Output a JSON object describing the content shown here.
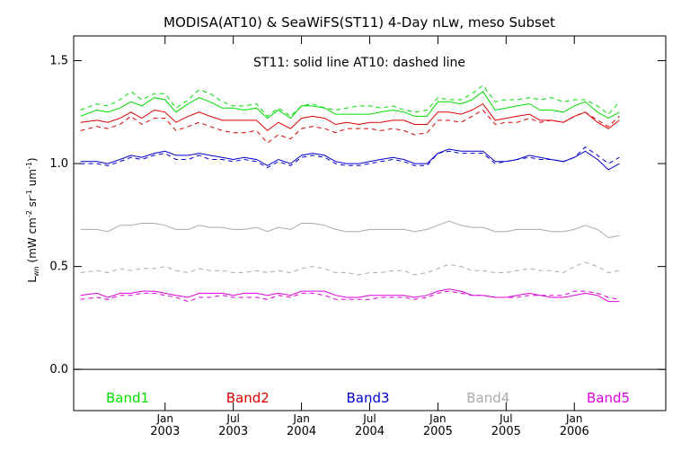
{
  "chart_data": {
    "type": "line",
    "title": "MODISA(AT10) & SeaWiFS(ST11) 4-Day nLw, meso Subset",
    "subtitle": "ST11: solid line   AT10: dashed line",
    "ylabel": "L_wn (mW cm^-2 sr^-1 um^-1)",
    "ylabel_parts": {
      "main": "L",
      "sub": "wn",
      "open": " (mW cm",
      "exp1": "-2",
      "mid1": " sr",
      "exp2": "-1",
      "mid2": " um",
      "exp3": "-1",
      "close": ")"
    },
    "xlabel": "",
    "xlim": [
      2002.33,
      2006.67
    ],
    "ylim": [
      -0.2,
      1.62
    ],
    "grid": false,
    "x_ticks": [
      {
        "x": 2003.0,
        "month": "Jan",
        "year": "2003"
      },
      {
        "x": 2003.5,
        "month": "Jul",
        "year": "2003"
      },
      {
        "x": 2004.0,
        "month": "Jan",
        "year": "2004"
      },
      {
        "x": 2004.5,
        "month": "Jul",
        "year": "2004"
      },
      {
        "x": 2005.0,
        "month": "Jan",
        "year": "2005"
      },
      {
        "x": 2005.5,
        "month": "Jul",
        "year": "2005"
      },
      {
        "x": 2006.0,
        "month": "Jan",
        "year": "2006"
      }
    ],
    "y_ticks": [
      {
        "value": 0.0,
        "label": "0.0"
      },
      {
        "value": 0.5,
        "label": "0.5"
      },
      {
        "value": 1.0,
        "label": "1.0"
      },
      {
        "value": 1.5,
        "label": "1.5"
      }
    ],
    "reference_line_y": 0.0,
    "legend_placement": "bottom-inside",
    "colors": {
      "band1": "#00dd00",
      "band2": "#dd0000",
      "band3": "#0000cc",
      "band4": "#aaaaaa",
      "band5": "#dd00dd"
    },
    "x": [
      2002.38,
      2002.5,
      2002.58,
      2002.67,
      2002.75,
      2002.83,
      2002.92,
      2003.0,
      2003.08,
      2003.17,
      2003.25,
      2003.33,
      2003.42,
      2003.5,
      2003.58,
      2003.67,
      2003.75,
      2003.83,
      2003.92,
      2004.0,
      2004.08,
      2004.17,
      2004.25,
      2004.33,
      2004.42,
      2004.5,
      2004.58,
      2004.67,
      2004.75,
      2004.83,
      2004.92,
      2005.0,
      2005.08,
      2005.17,
      2005.25,
      2005.33,
      2005.42,
      2005.5,
      2005.58,
      2005.67,
      2005.75,
      2005.83,
      2005.92,
      2006.0,
      2006.08,
      2006.17,
      2006.25,
      2006.33
    ],
    "series": [
      {
        "name": "Band1",
        "style": "solid",
        "color_key": "band1",
        "values": [
          1.23,
          1.26,
          1.25,
          1.27,
          1.3,
          1.28,
          1.32,
          1.31,
          1.25,
          1.29,
          1.32,
          1.3,
          1.27,
          1.27,
          1.26,
          1.27,
          1.22,
          1.26,
          1.22,
          1.28,
          1.28,
          1.27,
          1.24,
          1.24,
          1.24,
          1.24,
          1.25,
          1.26,
          1.25,
          1.23,
          1.23,
          1.3,
          1.3,
          1.29,
          1.31,
          1.35,
          1.26,
          1.27,
          1.28,
          1.29,
          1.26,
          1.26,
          1.25,
          1.28,
          1.3,
          1.25,
          1.22,
          1.25
        ]
      },
      {
        "name": "Band1",
        "style": "dashed",
        "color_key": "band1",
        "values": [
          1.26,
          1.29,
          1.28,
          1.31,
          1.35,
          1.31,
          1.34,
          1.34,
          1.27,
          1.31,
          1.36,
          1.34,
          1.3,
          1.28,
          1.28,
          1.29,
          1.23,
          1.27,
          1.23,
          1.28,
          1.29,
          1.27,
          1.26,
          1.27,
          1.28,
          1.28,
          1.27,
          1.28,
          1.26,
          1.25,
          1.26,
          1.32,
          1.31,
          1.31,
          1.34,
          1.38,
          1.3,
          1.31,
          1.31,
          1.32,
          1.31,
          1.32,
          1.3,
          1.31,
          1.31,
          1.28,
          1.24,
          1.3
        ]
      },
      {
        "name": "Band2",
        "style": "solid",
        "color_key": "band2",
        "values": [
          1.2,
          1.21,
          1.2,
          1.22,
          1.25,
          1.22,
          1.26,
          1.25,
          1.2,
          1.23,
          1.25,
          1.23,
          1.21,
          1.21,
          1.21,
          1.21,
          1.16,
          1.2,
          1.17,
          1.22,
          1.23,
          1.22,
          1.19,
          1.2,
          1.19,
          1.2,
          1.2,
          1.21,
          1.21,
          1.19,
          1.19,
          1.25,
          1.25,
          1.24,
          1.26,
          1.29,
          1.21,
          1.22,
          1.23,
          1.24,
          1.21,
          1.21,
          1.2,
          1.23,
          1.25,
          1.2,
          1.17,
          1.21
        ]
      },
      {
        "name": "Band2",
        "style": "dashed",
        "color_key": "band2",
        "values": [
          1.16,
          1.18,
          1.17,
          1.19,
          1.23,
          1.19,
          1.22,
          1.22,
          1.16,
          1.18,
          1.2,
          1.18,
          1.16,
          1.15,
          1.15,
          1.16,
          1.1,
          1.14,
          1.12,
          1.17,
          1.18,
          1.17,
          1.15,
          1.17,
          1.17,
          1.17,
          1.16,
          1.17,
          1.16,
          1.14,
          1.15,
          1.21,
          1.21,
          1.2,
          1.23,
          1.26,
          1.19,
          1.2,
          1.2,
          1.22,
          1.2,
          1.21,
          1.2,
          1.23,
          1.25,
          1.21,
          1.18,
          1.23
        ]
      },
      {
        "name": "Band3",
        "style": "solid",
        "color_key": "band3",
        "values": [
          1.01,
          1.01,
          1.0,
          1.02,
          1.04,
          1.03,
          1.05,
          1.06,
          1.04,
          1.04,
          1.05,
          1.04,
          1.03,
          1.02,
          1.03,
          1.02,
          0.99,
          1.02,
          1.0,
          1.04,
          1.05,
          1.04,
          1.01,
          1.0,
          1.0,
          1.01,
          1.02,
          1.03,
          1.02,
          1.0,
          1.0,
          1.05,
          1.07,
          1.06,
          1.06,
          1.06,
          1.01,
          1.01,
          1.02,
          1.04,
          1.03,
          1.02,
          1.01,
          1.03,
          1.06,
          1.02,
          0.97,
          1.0
        ]
      },
      {
        "name": "Band3",
        "style": "dashed",
        "color_key": "band3",
        "values": [
          1.0,
          1.0,
          0.99,
          1.01,
          1.03,
          1.02,
          1.04,
          1.05,
          1.02,
          1.02,
          1.04,
          1.02,
          1.02,
          1.01,
          1.02,
          1.01,
          0.98,
          1.01,
          0.99,
          1.03,
          1.04,
          1.03,
          1.0,
          0.99,
          0.99,
          1.0,
          1.01,
          1.02,
          1.01,
          0.99,
          0.99,
          1.05,
          1.06,
          1.05,
          1.05,
          1.05,
          1.0,
          1.01,
          1.02,
          1.03,
          1.02,
          1.02,
          1.01,
          1.03,
          1.08,
          1.04,
          1.0,
          1.03
        ]
      },
      {
        "name": "Band4",
        "style": "solid",
        "color_key": "band4",
        "values": [
          0.68,
          0.68,
          0.67,
          0.7,
          0.7,
          0.71,
          0.71,
          0.7,
          0.68,
          0.68,
          0.7,
          0.69,
          0.69,
          0.68,
          0.68,
          0.69,
          0.67,
          0.69,
          0.68,
          0.71,
          0.71,
          0.7,
          0.68,
          0.67,
          0.67,
          0.68,
          0.68,
          0.68,
          0.68,
          0.67,
          0.68,
          0.7,
          0.72,
          0.7,
          0.69,
          0.69,
          0.67,
          0.67,
          0.68,
          0.68,
          0.68,
          0.67,
          0.67,
          0.68,
          0.7,
          0.68,
          0.64,
          0.65
        ]
      },
      {
        "name": "Band4",
        "style": "dashed",
        "color_key": "band4",
        "values": [
          0.47,
          0.48,
          0.47,
          0.49,
          0.48,
          0.49,
          0.49,
          0.5,
          0.48,
          0.47,
          0.49,
          0.48,
          0.48,
          0.47,
          0.47,
          0.48,
          0.47,
          0.48,
          0.47,
          0.49,
          0.5,
          0.49,
          0.47,
          0.47,
          0.46,
          0.47,
          0.47,
          0.48,
          0.48,
          0.46,
          0.47,
          0.49,
          0.51,
          0.5,
          0.48,
          0.48,
          0.47,
          0.47,
          0.48,
          0.49,
          0.48,
          0.48,
          0.47,
          0.5,
          0.52,
          0.5,
          0.47,
          0.48
        ]
      },
      {
        "name": "Band5",
        "style": "solid",
        "color_key": "band5",
        "values": [
          0.36,
          0.37,
          0.35,
          0.37,
          0.37,
          0.38,
          0.38,
          0.37,
          0.36,
          0.35,
          0.37,
          0.37,
          0.37,
          0.36,
          0.37,
          0.37,
          0.36,
          0.37,
          0.36,
          0.38,
          0.38,
          0.38,
          0.36,
          0.35,
          0.35,
          0.36,
          0.36,
          0.36,
          0.36,
          0.35,
          0.36,
          0.38,
          0.39,
          0.38,
          0.36,
          0.36,
          0.35,
          0.35,
          0.36,
          0.37,
          0.36,
          0.35,
          0.35,
          0.36,
          0.37,
          0.36,
          0.33,
          0.33
        ]
      },
      {
        "name": "Band5",
        "style": "dashed",
        "color_key": "band5",
        "values": [
          0.34,
          0.35,
          0.34,
          0.36,
          0.36,
          0.37,
          0.37,
          0.36,
          0.35,
          0.33,
          0.35,
          0.35,
          0.36,
          0.35,
          0.35,
          0.35,
          0.34,
          0.36,
          0.35,
          0.37,
          0.37,
          0.36,
          0.34,
          0.34,
          0.34,
          0.34,
          0.35,
          0.35,
          0.35,
          0.34,
          0.35,
          0.37,
          0.38,
          0.37,
          0.36,
          0.36,
          0.35,
          0.35,
          0.35,
          0.36,
          0.36,
          0.36,
          0.36,
          0.38,
          0.38,
          0.37,
          0.35,
          0.34
        ]
      }
    ],
    "legend": [
      {
        "label": "Band1",
        "color_key": "band1"
      },
      {
        "label": "Band2",
        "color_key": "band2"
      },
      {
        "label": "Band3",
        "color_key": "band3"
      },
      {
        "label": "Band4",
        "color_key": "band4"
      },
      {
        "label": "Band5",
        "color_key": "band5"
      }
    ]
  }
}
